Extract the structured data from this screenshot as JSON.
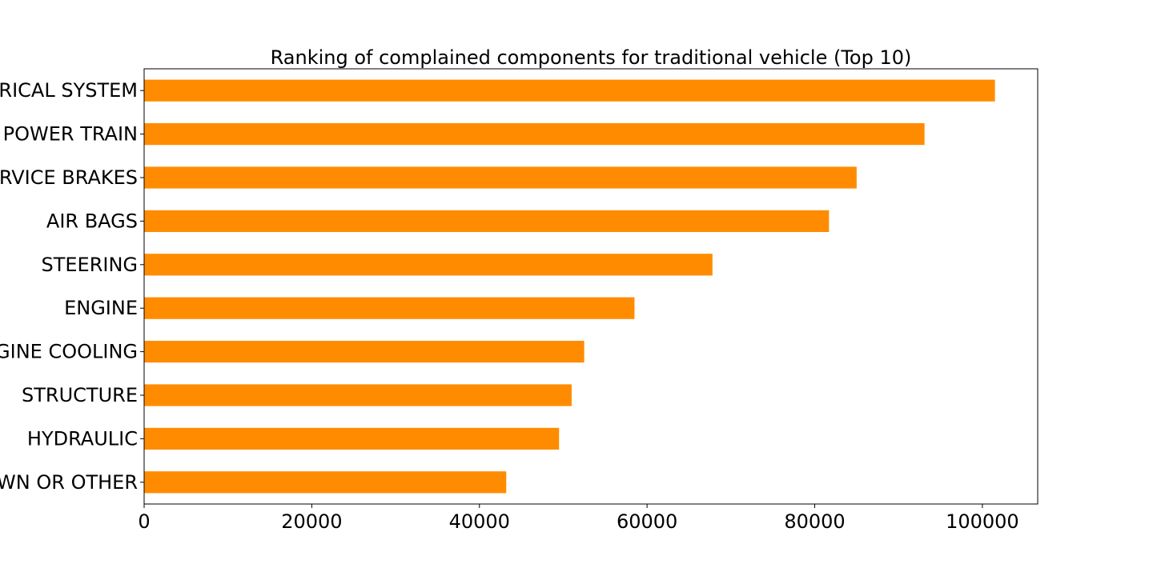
{
  "chart_data": {
    "type": "bar",
    "orientation": "horizontal",
    "title": "Ranking of complained components for traditional vehicle (Top 10)",
    "xlabel": "",
    "ylabel": "",
    "categories": [
      "ELECTRICAL SYSTEM",
      "POWER TRAIN",
      "SERVICE BRAKES",
      "AIR BAGS",
      "STEERING",
      "ENGINE",
      "ENGINE COOLING",
      "STRUCTURE",
      "HYDRAULIC",
      "UNKNOWN OR OTHER"
    ],
    "values": [
      101500,
      93100,
      85000,
      81700,
      67800,
      58500,
      52500,
      51000,
      49500,
      43200
    ],
    "xlim": [
      0,
      106600
    ],
    "xticks": [
      0,
      20000,
      40000,
      60000,
      80000,
      100000
    ],
    "xtick_labels": [
      "0",
      "20000",
      "40000",
      "60000",
      "80000",
      "100000"
    ],
    "grid": false,
    "legend": "none",
    "bar_color": "#ff8c00"
  }
}
